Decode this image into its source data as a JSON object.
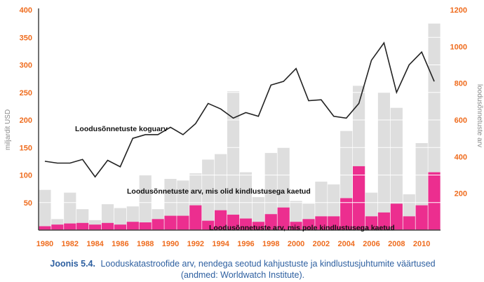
{
  "chart_data": {
    "type": "bar+line",
    "years": [
      1980,
      1981,
      1982,
      1983,
      1984,
      1985,
      1986,
      1987,
      1988,
      1989,
      1990,
      1991,
      1992,
      1993,
      1994,
      1995,
      1996,
      1997,
      1998,
      1999,
      2000,
      2001,
      2002,
      2003,
      2004,
      2005,
      2006,
      2007,
      2008,
      2009,
      2010,
      2011
    ],
    "x_tick_labels": [
      "1980",
      "1982",
      "1984",
      "1986",
      "1988",
      "1990",
      "1992",
      "1994",
      "1996",
      "1998",
      "2000",
      "2002",
      "2004",
      "2006",
      "2008",
      "2010"
    ],
    "y_left": {
      "label": "miljardit USD",
      "ticks": [
        "50",
        "100",
        "150",
        "200",
        "250",
        "300",
        "350",
        "400"
      ],
      "min": 0,
      "max": 400
    },
    "y_right": {
      "label": "loodusõnnetuste arv",
      "ticks": [
        "200",
        "400",
        "600",
        "800",
        "1000",
        "1200"
      ],
      "min": 0,
      "max": 1200
    },
    "series": [
      {
        "name": "Loodusõnnetuste koguarv",
        "type": "line",
        "axis": "right",
        "color": "#222222",
        "values": [
          375,
          365,
          365,
          385,
          290,
          380,
          345,
          500,
          520,
          520,
          560,
          520,
          580,
          690,
          660,
          610,
          640,
          620,
          790,
          810,
          880,
          705,
          710,
          620,
          610,
          690,
          925,
          1020,
          750,
          900,
          970,
          810
        ]
      },
      {
        "name": "Loodusõnnetuste arv, mis olid kindlustusega kaetud",
        "type": "bar",
        "axis": "left",
        "color": "#dedede",
        "values": [
          73,
          20,
          68,
          38,
          18,
          47,
          40,
          43,
          100,
          38,
          93,
          90,
          103,
          128,
          138,
          252,
          105,
          60,
          140,
          150,
          53,
          48,
          88,
          83,
          180,
          262,
          68,
          250,
          222,
          65,
          158,
          375
        ]
      },
      {
        "name": "Loodusõnnetuste arv, mis pole kindlustusega kaetud",
        "type": "bar",
        "axis": "left",
        "color": "#ec2e8f",
        "values": [
          7,
          10,
          12,
          13,
          10,
          13,
          10,
          15,
          14,
          20,
          26,
          26,
          45,
          17,
          36,
          28,
          21,
          15,
          29,
          41,
          15,
          20,
          25,
          25,
          58,
          116,
          25,
          32,
          48,
          25,
          45,
          105
        ]
      }
    ],
    "annotations": [
      "Loodusõnnetuste koguarv",
      "Loodusõnnetuste arv, mis olid kindlustusega kaetud",
      "Loodusõnnetuste arv, mis pole kindlustusega kaetud"
    ],
    "caption_prefix": "Joonis 5.4.",
    "caption_line1": "Looduskatastroofide arv, nendega seotud kahjustuste ja kindlustusjuhtumite väärtused",
    "caption_line2": "(andmed: Worldwatch Institute).",
    "grid": "horizontal"
  },
  "colors": {
    "tick_text": "#ef6c1e",
    "axis": "#444444",
    "grid": "#ffffff",
    "caption": "#2d5fa0"
  }
}
